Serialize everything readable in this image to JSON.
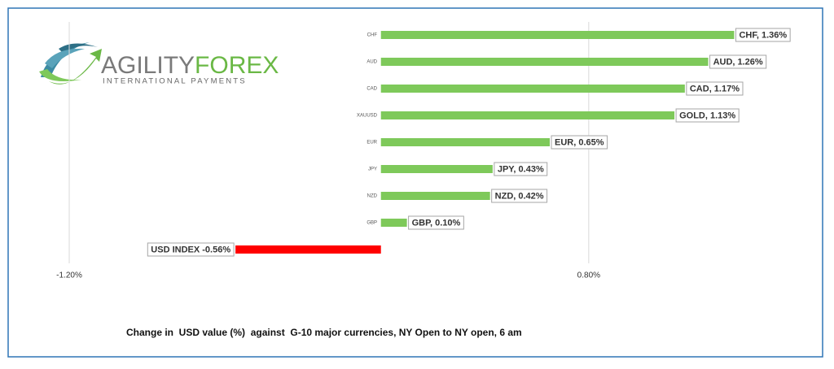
{
  "logo": {
    "brand_left": "AGILITY",
    "brand_right": "FOREX",
    "tagline": "INTERNATIONAL PAYMENTS"
  },
  "chart_data": {
    "type": "barh",
    "caption": "Change in  USD value (%)  against  G-10 major currencies, NY Open to NY open, 6 am",
    "categories": [
      "CHF",
      "AUD",
      "CAD",
      "XAUUSD",
      "EUR",
      "JPY",
      "NZD",
      "GBP",
      null
    ],
    "values": [
      1.36,
      1.26,
      1.17,
      1.13,
      0.65,
      0.43,
      0.42,
      0.1,
      -0.56
    ],
    "value_labels": [
      "CHF, 1.36%",
      "AUD, 1.26%",
      "CAD, 1.17%",
      "GOLD, 1.13%",
      "EUR, 0.65%",
      "JPY, 0.43%",
      "NZD, 0.42%",
      "GBP, 0.10%",
      "USD INDEX -0.56%"
    ],
    "colors": [
      "#7ec95a",
      "#7ec95a",
      "#7ec95a",
      "#7ec95a",
      "#7ec95a",
      "#7ec95a",
      "#7ec95a",
      "#7ec95a",
      "#ff0000"
    ],
    "xlim": [
      -1.2,
      1.6
    ],
    "xticks": [
      {
        "value": -1.2,
        "label": "-1.20%"
      },
      {
        "value": 0.8,
        "label": "0.80%"
      }
    ],
    "grid": true
  }
}
